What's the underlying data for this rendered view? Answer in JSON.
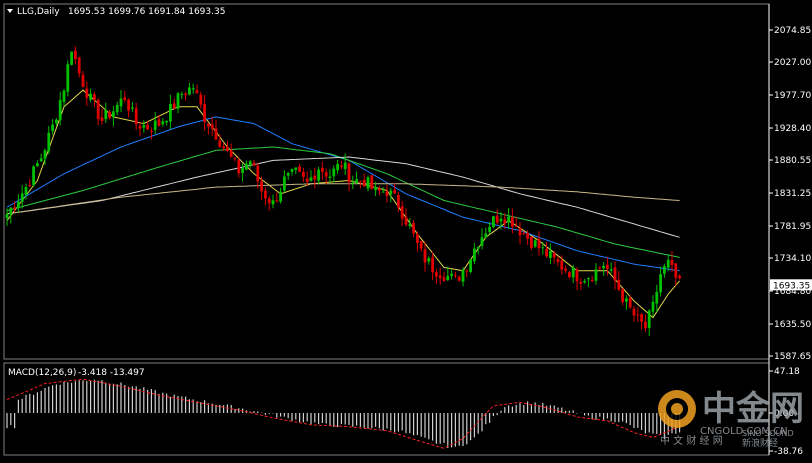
{
  "header": {
    "symbol_tf": "LLG,Daily",
    "ohlc": "1695.53 1699.76 1691.84 1693.35"
  },
  "macd_header": {
    "label": "MACD(12,26,9)",
    "values": "-3.418 -13.497"
  },
  "watermark": {
    "brand_cn": "中金网",
    "brand_en": "CNGOLD.COM.CN",
    "sub_cn": "中 文 财 经 网",
    "sino": "SINO SOUND",
    "sino_cn": "新浪财经"
  },
  "colors": {
    "background": "#000000",
    "bull": "#00c000",
    "bear": "#e00000",
    "ma_yellow": "#e6d84a",
    "ma_blue": "#1e7fff",
    "ma_green": "#2ecc40",
    "ma_white": "#d8d8d8",
    "ma_tan": "#c8b88a",
    "macd_hist": "#cfcfcf",
    "macd_signal": "#ff2020",
    "price_tag_bg": "#ffffff",
    "axis": "#ffffff"
  },
  "chart_data": {
    "type": "candlestick",
    "price_axis": {
      "ticks": [
        "2074.85",
        "2027.00",
        "1977.70",
        "1928.40",
        "1880.55",
        "1831.25",
        "1781.95",
        "1734.10",
        "1684.80",
        "1635.50",
        "1587.65"
      ],
      "ylim": [
        1587.65,
        2100.0
      ],
      "current_price_label": "1693.35",
      "current_price": 1693.35
    },
    "macd_axis": {
      "ticks": [
        "47.18",
        "0.00",
        "-38.76"
      ],
      "ylim": [
        -38.76,
        47.18
      ]
    },
    "anchors": [
      [
        0,
        1800
      ],
      [
        5,
        1840
      ],
      [
        9,
        1885
      ],
      [
        12,
        1930
      ],
      [
        15,
        1990
      ],
      [
        17,
        2050
      ],
      [
        19,
        2010
      ],
      [
        22,
        1970
      ],
      [
        25,
        1940
      ],
      [
        28,
        1955
      ],
      [
        31,
        1975
      ],
      [
        34,
        1935
      ],
      [
        37,
        1930
      ],
      [
        40,
        1935
      ],
      [
        43,
        1955
      ],
      [
        46,
        1980
      ],
      [
        49,
        1990
      ],
      [
        52,
        1945
      ],
      [
        55,
        1920
      ],
      [
        58,
        1890
      ],
      [
        61,
        1865
      ],
      [
        64,
        1880
      ],
      [
        67,
        1835
      ],
      [
        70,
        1815
      ],
      [
        73,
        1850
      ],
      [
        76,
        1860
      ],
      [
        79,
        1845
      ],
      [
        82,
        1870
      ],
      [
        85,
        1858
      ],
      [
        88,
        1875
      ],
      [
        91,
        1850
      ],
      [
        94,
        1850
      ],
      [
        97,
        1832
      ],
      [
        100,
        1835
      ],
      [
        103,
        1815
      ],
      [
        106,
        1780
      ],
      [
        109,
        1740
      ],
      [
        112,
        1720
      ],
      [
        115,
        1710
      ],
      [
        118,
        1700
      ],
      [
        121,
        1725
      ],
      [
        124,
        1760
      ],
      [
        127,
        1785
      ],
      [
        130,
        1800
      ],
      [
        133,
        1790
      ],
      [
        136,
        1770
      ],
      [
        139,
        1755
      ],
      [
        142,
        1740
      ],
      [
        145,
        1725
      ],
      [
        148,
        1715
      ],
      [
        151,
        1705
      ],
      [
        154,
        1710
      ],
      [
        157,
        1725
      ],
      [
        160,
        1700
      ],
      [
        163,
        1665
      ],
      [
        166,
        1640
      ],
      [
        168,
        1630
      ],
      [
        170,
        1660
      ],
      [
        172,
        1710
      ],
      [
        174,
        1725
      ],
      [
        177,
        1693
      ]
    ],
    "moving_averages": [
      {
        "name": "",
        "color_key": "ma_yellow",
        "points": [
          [
            0,
            1790
          ],
          [
            8,
            1850
          ],
          [
            15,
            1960
          ],
          [
            20,
            1985
          ],
          [
            28,
            1945
          ],
          [
            36,
            1935
          ],
          [
            45,
            1960
          ],
          [
            50,
            1960
          ],
          [
            58,
            1900
          ],
          [
            65,
            1860
          ],
          [
            72,
            1830
          ],
          [
            80,
            1845
          ],
          [
            90,
            1850
          ],
          [
            100,
            1835
          ],
          [
            108,
            1770
          ],
          [
            115,
            1720
          ],
          [
            120,
            1715
          ],
          [
            126,
            1765
          ],
          [
            132,
            1790
          ],
          [
            140,
            1760
          ],
          [
            150,
            1715
          ],
          [
            158,
            1715
          ],
          [
            165,
            1670
          ],
          [
            170,
            1645
          ],
          [
            174,
            1680
          ],
          [
            177,
            1700
          ]
        ]
      },
      {
        "name": "",
        "color_key": "ma_blue",
        "points": [
          [
            0,
            1810
          ],
          [
            15,
            1860
          ],
          [
            30,
            1900
          ],
          [
            45,
            1930
          ],
          [
            55,
            1945
          ],
          [
            65,
            1935
          ],
          [
            75,
            1905
          ],
          [
            90,
            1880
          ],
          [
            105,
            1830
          ],
          [
            120,
            1795
          ],
          [
            135,
            1775
          ],
          [
            150,
            1745
          ],
          [
            165,
            1725
          ],
          [
            177,
            1715
          ]
        ]
      },
      {
        "name": "",
        "color_key": "ma_green",
        "points": [
          [
            0,
            1805
          ],
          [
            20,
            1835
          ],
          [
            40,
            1870
          ],
          [
            55,
            1895
          ],
          [
            70,
            1900
          ],
          [
            85,
            1890
          ],
          [
            100,
            1860
          ],
          [
            115,
            1820
          ],
          [
            130,
            1800
          ],
          [
            145,
            1780
          ],
          [
            160,
            1755
          ],
          [
            177,
            1735
          ]
        ]
      },
      {
        "name": "",
        "color_key": "ma_white",
        "points": [
          [
            0,
            1800
          ],
          [
            25,
            1820
          ],
          [
            50,
            1855
          ],
          [
            70,
            1880
          ],
          [
            90,
            1885
          ],
          [
            105,
            1875
          ],
          [
            120,
            1855
          ],
          [
            135,
            1830
          ],
          [
            150,
            1810
          ],
          [
            165,
            1785
          ],
          [
            177,
            1765
          ]
        ]
      },
      {
        "name": "",
        "color_key": "ma_tan",
        "points": [
          [
            0,
            1800
          ],
          [
            30,
            1825
          ],
          [
            55,
            1840
          ],
          [
            80,
            1845
          ],
          [
            105,
            1845
          ],
          [
            130,
            1840
          ],
          [
            150,
            1833
          ],
          [
            165,
            1825
          ],
          [
            177,
            1820
          ]
        ]
      }
    ],
    "macd_signal_anchors": [
      [
        0,
        15
      ],
      [
        10,
        33
      ],
      [
        20,
        38
      ],
      [
        30,
        30
      ],
      [
        40,
        20
      ],
      [
        50,
        12
      ],
      [
        60,
        4
      ],
      [
        70,
        -5
      ],
      [
        80,
        -12
      ],
      [
        90,
        -14
      ],
      [
        100,
        -18
      ],
      [
        108,
        -28
      ],
      [
        115,
        -36
      ],
      [
        120,
        -26
      ],
      [
        128,
        8
      ],
      [
        135,
        12
      ],
      [
        142,
        6
      ],
      [
        150,
        -4
      ],
      [
        158,
        -8
      ],
      [
        165,
        -20
      ],
      [
        170,
        -25
      ],
      [
        177,
        -13.5
      ]
    ]
  }
}
